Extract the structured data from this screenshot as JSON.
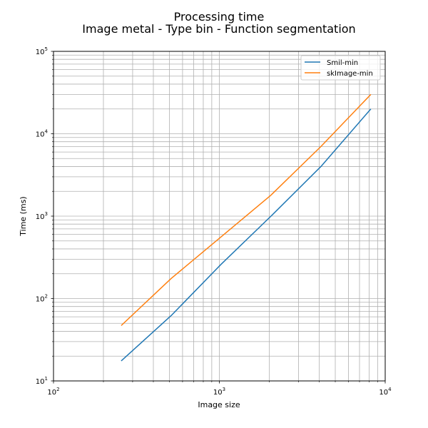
{
  "chart_data": {
    "type": "line",
    "title": "Processing time",
    "subtitle": "Image metal - Type bin - Function segmentation",
    "xlabel": "Image size",
    "ylabel": "Time (ms)",
    "xscale": "log",
    "yscale": "log",
    "xlim": [
      100,
      10000
    ],
    "ylim": [
      10,
      100000
    ],
    "grid": true,
    "legend_position": "top-right",
    "x_ticks": [
      {
        "value": 100,
        "base": "10",
        "exp": "2"
      },
      {
        "value": 1000,
        "base": "10",
        "exp": "3"
      },
      {
        "value": 10000,
        "base": "10",
        "exp": "4"
      }
    ],
    "y_ticks": [
      {
        "value": 10,
        "base": "10",
        "exp": "1"
      },
      {
        "value": 100,
        "base": "10",
        "exp": "2"
      },
      {
        "value": 1000,
        "base": "10",
        "exp": "3"
      },
      {
        "value": 10000,
        "base": "10",
        "exp": "4"
      },
      {
        "value": 100000,
        "base": "10",
        "exp": "5"
      }
    ],
    "series": [
      {
        "name": "Smil-min",
        "color": "#1f77b4",
        "x": [
          256,
          512,
          1024,
          2048,
          4096,
          8192
        ],
        "y": [
          17.5,
          62,
          260,
          1000,
          4000,
          20000
        ]
      },
      {
        "name": "skImage-min",
        "color": "#ff7f0e",
        "x": [
          256,
          512,
          1024,
          2048,
          4096,
          8192
        ],
        "y": [
          47,
          175,
          560,
          1800,
          7000,
          30000
        ]
      }
    ]
  }
}
